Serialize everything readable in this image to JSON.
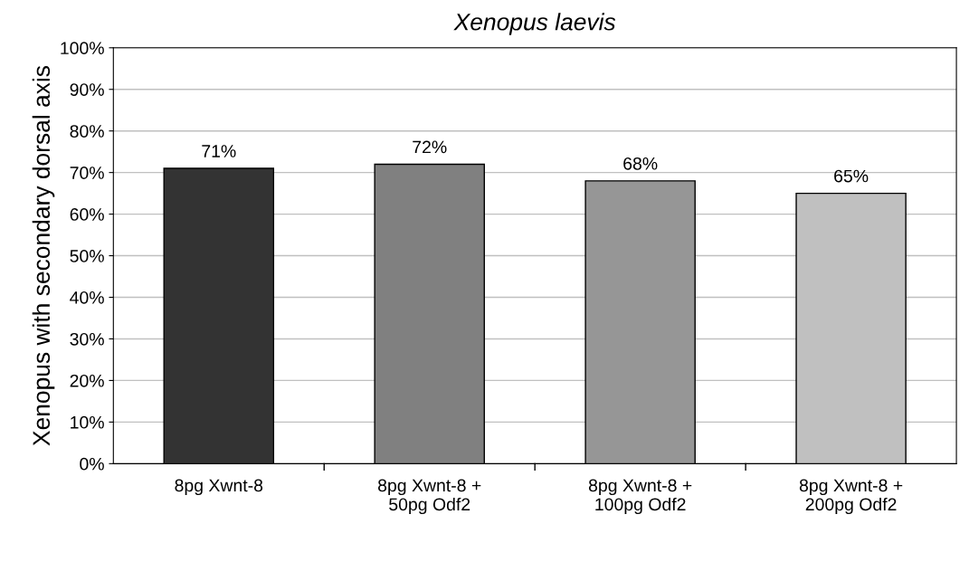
{
  "chart_data": {
    "type": "bar",
    "title": "Xenopus laevis",
    "ylabel": "Xenopus with secondary dorsal axis",
    "categories": [
      "8pg Xwnt-8",
      "8pg Xwnt-8 +\n50pg Odf2",
      "8pg Xwnt-8 +\n100pg Odf2",
      "8pg Xwnt-8 +\n200pg Odf2"
    ],
    "values": [
      71,
      72,
      68,
      65
    ],
    "colors": [
      "#333333",
      "#808080",
      "#969696",
      "#c0c0c0"
    ],
    "value_labels": [
      "71%",
      "72%",
      "68%",
      "65%"
    ],
    "ylim": [
      0,
      100
    ],
    "yticks": [
      {
        "value": 0,
        "label": "0%"
      },
      {
        "value": 10,
        "label": "10%"
      },
      {
        "value": 20,
        "label": "20%"
      },
      {
        "value": 30,
        "label": "30%"
      },
      {
        "value": 40,
        "label": "40%"
      },
      {
        "value": 50,
        "label": "50%"
      },
      {
        "value": 60,
        "label": "60%"
      },
      {
        "value": 70,
        "label": "70%"
      },
      {
        "value": 80,
        "label": "80%"
      },
      {
        "value": 90,
        "label": "90%"
      },
      {
        "value": 100,
        "label": "100%"
      }
    ],
    "grid": "y",
    "legend": false
  }
}
